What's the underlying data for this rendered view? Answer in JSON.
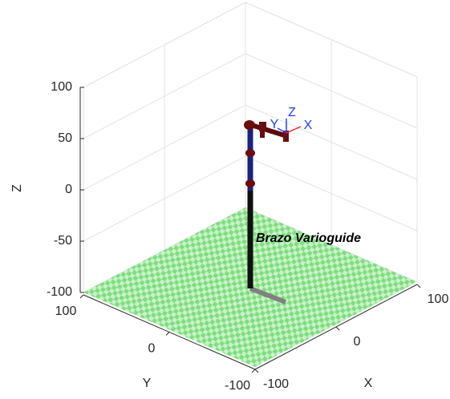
{
  "chart_data": {
    "type": "robot3d",
    "xlabel": "X",
    "ylabel": "Y",
    "zlabel": "Z",
    "xlim": [
      -100,
      100
    ],
    "ylim": [
      -100,
      100
    ],
    "zlim": [
      -100,
      100
    ],
    "xticks": [
      -100,
      0,
      100
    ],
    "yticks": [
      -100,
      0,
      100
    ],
    "zticks": [
      -100,
      -50,
      0,
      50,
      100
    ],
    "grid": true,
    "annotation": "Brazo Varioguide",
    "frame_labels": [
      "Z",
      "Y",
      "X"
    ]
  }
}
